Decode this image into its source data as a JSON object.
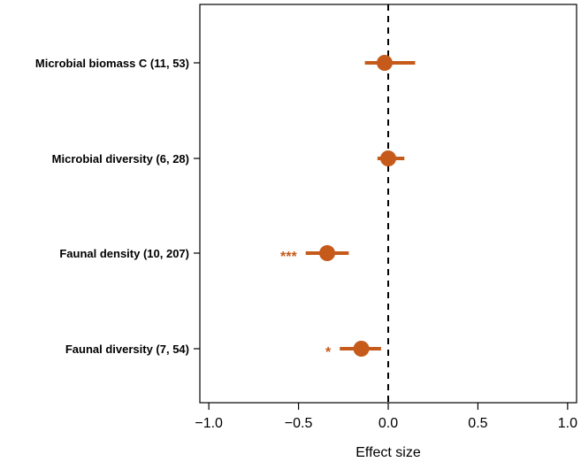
{
  "chart_data": {
    "type": "forest",
    "xlabel": "Effect size",
    "xlim": [
      -1.05,
      1.05
    ],
    "xticks": [
      -1.0,
      -0.5,
      0.0,
      0.5,
      1.0
    ],
    "xtick_labels": [
      "−1.0",
      "−0.5",
      "0.0",
      "0.5",
      "1.0"
    ],
    "reference_line": 0.0,
    "color": "#c55a1a",
    "categories": [
      "Microbial biomass C (11, 53)",
      "Microbial diversity (6, 28)",
      "Faunal density (10, 207)",
      "Faunal diversity (7, 54)"
    ],
    "estimates": [
      -0.02,
      0.0,
      -0.34,
      -0.15
    ],
    "ci_lower": [
      -0.13,
      -0.06,
      -0.46,
      -0.27
    ],
    "ci_upper": [
      0.15,
      0.09,
      -0.22,
      -0.04
    ],
    "significance": [
      "",
      "",
      "***",
      "*"
    ]
  }
}
